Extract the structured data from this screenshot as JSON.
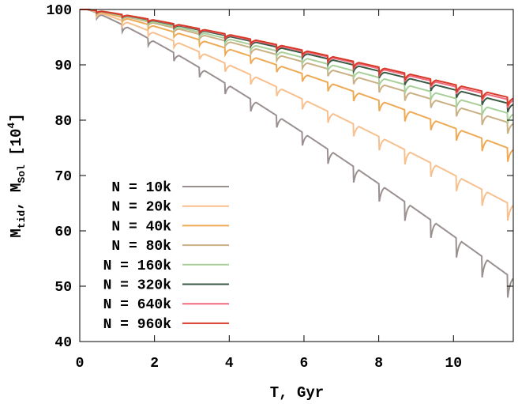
{
  "chart_data": {
    "type": "line",
    "xlabel": "T, Gyr",
    "ylabel_main": "M",
    "ylabel_sub1": "tid",
    "ylabel_mid": ", M",
    "ylabel_sub2": "Sol",
    "ylabel_unit_open": " [10",
    "ylabel_unit_sup": "4",
    "ylabel_unit_close": "]",
    "xlim": [
      0,
      11.6
    ],
    "ylim": [
      40,
      100
    ],
    "xticks": [
      "0",
      "2",
      "4",
      "6",
      "8",
      "10"
    ],
    "xtick_values": [
      0,
      2,
      4,
      6,
      8,
      10
    ],
    "yticks": [
      "40",
      "50",
      "60",
      "70",
      "80",
      "90",
      "100"
    ],
    "ytick_values": [
      40,
      50,
      60,
      70,
      80,
      90,
      100
    ],
    "legend_position": "bottom-left",
    "dip_period": 0.6875,
    "dip_start": 0.45,
    "series": [
      {
        "name": "N = 10k",
        "color": "#9a9090",
        "final_value": 51.3,
        "dip_scale": 0.9
      },
      {
        "name": "N = 20k",
        "color": "#f7c08e",
        "final_value": 64.5,
        "dip_scale": 0.7
      },
      {
        "name": "N = 40k",
        "color": "#eeaa55",
        "final_value": 74.6,
        "dip_scale": 0.55
      },
      {
        "name": "N = 80k",
        "color": "#c9b085",
        "final_value": 79.3,
        "dip_scale": 0.45
      },
      {
        "name": "N = 160k",
        "color": "#a9d09a",
        "final_value": 81.0,
        "dip_scale": 0.4
      },
      {
        "name": "N = 320k",
        "color": "#3a5a45",
        "final_value": 82.8,
        "dip_scale": 0.35
      },
      {
        "name": "N = 640k",
        "color": "#f06a80",
        "final_value": 83.5,
        "dip_scale": 0.33
      },
      {
        "name": "N = 960k",
        "color": "#d83a28",
        "final_value": 83.9,
        "dip_scale": 0.33
      }
    ]
  }
}
